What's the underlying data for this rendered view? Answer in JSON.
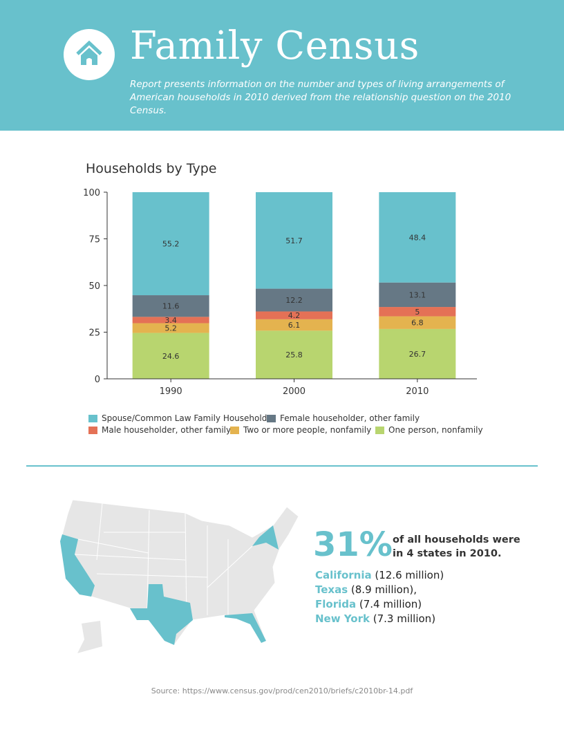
{
  "header": {
    "title": "Family Census",
    "subtitle": "Report presents information on the number and types of living arrangements of American households in 2010 derived from the relationship question on the 2010 Census.",
    "icon": "house-icon"
  },
  "chart_data": {
    "type": "bar",
    "stacked": true,
    "title": "Households by Type",
    "categories": [
      "1990",
      "2000",
      "2010"
    ],
    "ylim": [
      0,
      100
    ],
    "yticks": [
      "0",
      "25",
      "50",
      "75",
      "100"
    ],
    "series": [
      {
        "name": "One person, nonfamily",
        "color": "#b8d56f",
        "values": [
          24.6,
          25.8,
          26.7
        ],
        "labels": [
          "24.6",
          "25.8",
          "26.7"
        ]
      },
      {
        "name": "Two or more people, nonfamily",
        "color": "#e4b34f",
        "values": [
          5.2,
          6.1,
          6.8
        ],
        "labels": [
          "5.2",
          "6.1",
          "6.8"
        ]
      },
      {
        "name": "Male householder, other family",
        "color": "#e47156",
        "values": [
          3.4,
          4.2,
          5
        ],
        "labels": [
          "3.4",
          "4.2",
          "5"
        ]
      },
      {
        "name": "Female householder, other family",
        "color": "#667885",
        "values": [
          11.6,
          12.2,
          13.1
        ],
        "labels": [
          "11.6",
          "12.2",
          "13.1"
        ]
      },
      {
        "name": "Spouse/Common Law Family Household",
        "color": "#68c1cc",
        "values": [
          55.2,
          51.7,
          48.4
        ],
        "labels": [
          "55.2",
          "51.7",
          "48.4"
        ]
      }
    ],
    "legend_order": [
      4,
      3,
      2,
      1,
      0
    ]
  },
  "stats": {
    "percent": "31%",
    "text_line1": "of all households were",
    "text_line2": "in 4 states in 2010.",
    "states": [
      {
        "name": "California",
        "value": " (12.6 million)"
      },
      {
        "name": "Texas",
        "value": " (8.9 million),"
      },
      {
        "name": "Florida",
        "value": " (7.4 million)"
      },
      {
        "name": "New York",
        "value": " (7.3 million)"
      }
    ]
  },
  "source": "Source: https://www.census.gov/prod/cen2010/briefs/c2010br-14.pdf",
  "colors": {
    "accent": "#68c1cc",
    "map_base": "#e6e6e6"
  }
}
